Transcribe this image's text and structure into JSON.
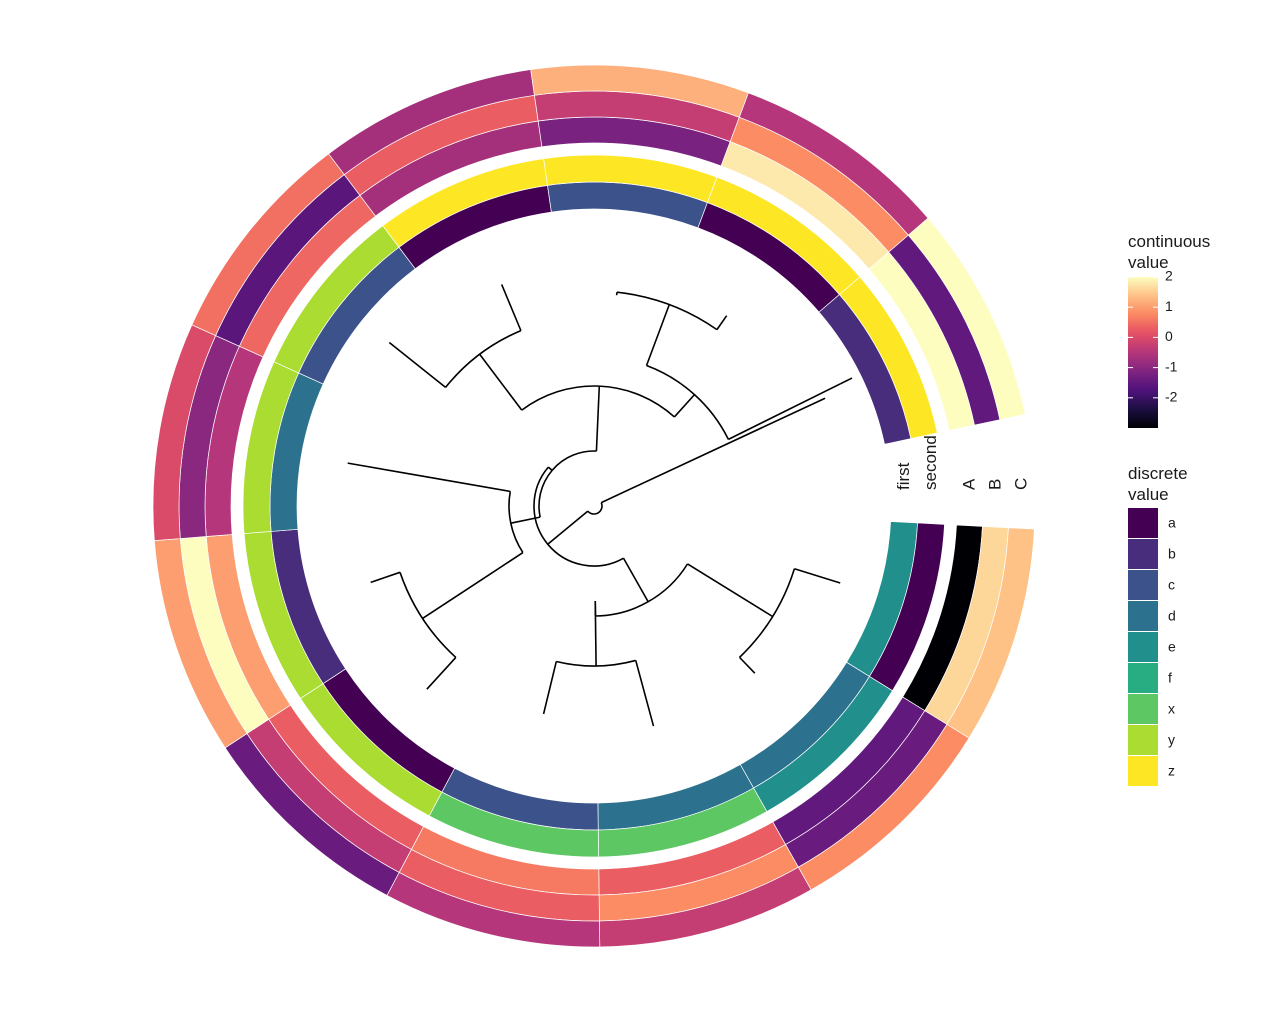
{
  "chart_data": {
    "type": "heatmap",
    "layout": "circular",
    "tips": 12,
    "dendrogram": "phylogenetic tree with 12 leaves, one leaf sits in the gap between last and first tile",
    "rings_inner_to_outer": [
      "first",
      "second",
      "A",
      "B",
      "C"
    ],
    "ring_labels": {
      "discrete": [
        "first",
        "second"
      ],
      "continuous": [
        "A",
        "B",
        "C"
      ]
    },
    "discrete_values": {
      "first": [
        "e",
        "d",
        "d",
        "c",
        "a",
        "b",
        "d",
        "c",
        "a",
        "c",
        "a",
        "b"
      ],
      "second": [
        "a",
        "e",
        "x",
        "x",
        "y",
        "y",
        "y",
        "y",
        "z",
        "z",
        "z",
        "z"
      ]
    },
    "continuous_values": {
      "A": [
        -3.0,
        -1.5,
        0.3,
        0.6,
        0.3,
        1.0,
        -0.5,
        0.4,
        -0.7,
        -1.2,
        1.8,
        2.0
      ],
      "B": [
        1.6,
        -1.4,
        0.8,
        0.3,
        -0.3,
        2.0,
        -1.0,
        -1.6,
        0.3,
        -0.3,
        0.8,
        -1.5
      ],
      "C": [
        1.4,
        0.8,
        -0.3,
        -0.5,
        -1.4,
        1.0,
        0.0,
        0.5,
        -0.7,
        1.2,
        -0.5,
        2.0
      ]
    },
    "legends": {
      "continuous": {
        "title_line1": "continuous",
        "title_line2": "value",
        "ticks": [
          "2",
          "1",
          "0",
          "-1",
          "-2"
        ],
        "tick_values": [
          2,
          1,
          0,
          -1,
          -2
        ],
        "range": [
          -3.0,
          2.0
        ],
        "palette": "magma"
      },
      "discrete": {
        "title_line1": "discrete",
        "title_line2": "value",
        "levels": [
          "a",
          "b",
          "c",
          "d",
          "e",
          "f",
          "x",
          "y",
          "z"
        ],
        "colors": [
          "#440154",
          "#472D7B",
          "#3B528B",
          "#2C728E",
          "#21908C",
          "#27AD81",
          "#5DC863",
          "#AADC32",
          "#FDE725"
        ]
      }
    },
    "legend_placement": "right",
    "grid": false
  }
}
